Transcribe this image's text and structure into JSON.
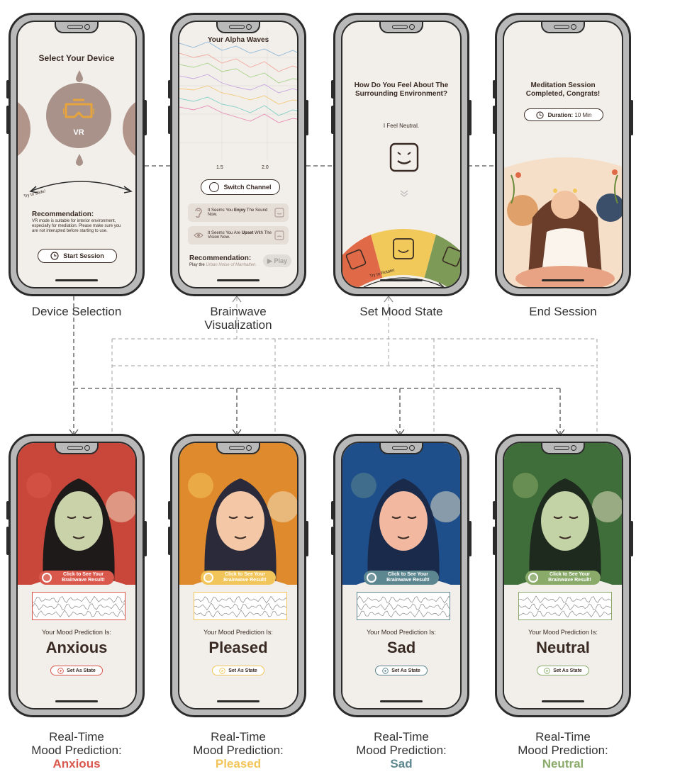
{
  "screens": {
    "device": {
      "title": "Select Your Device",
      "device_label": "VR",
      "slide_hint": "Try to Slide!",
      "rec_title": "Recommendation:",
      "rec_text": "VR mode is suitable for interior environment, especially for mediation. Please make sure you are not interupted before starting to use.",
      "start_button": "Start Session"
    },
    "brainwave": {
      "title": "Your Alpha Waves",
      "ticks": [
        "1.5",
        "2.0"
      ],
      "switch_button": "Switch Channel",
      "card1_pre": "It Seems You ",
      "card1_bold": "Enjoy",
      "card1_post": " The Sound Now.",
      "card2_pre": "It Seems You Are ",
      "card2_bold": "Upset",
      "card2_post": " With The Vision Now.",
      "rec_title": "Recommendation:",
      "rec_pre": "Play the ",
      "rec_italic": "Urban Noise of Manhatten.",
      "play_button": "▶ Play"
    },
    "mood": {
      "title": "How Do You Feel About The Surrounding Environment?",
      "feeling": "I Feel Neutral.",
      "rotate_hint": "Try to Rotate!"
    },
    "end": {
      "title": "Meditation Session Completed, Congrats!",
      "duration_label": "Duration:",
      "duration_value": "10 Min"
    }
  },
  "captions": {
    "device": "Device Selection",
    "brainwave": "Brainwave Visualization",
    "mood": "Set Mood State",
    "end": "End Session",
    "rt_prefix_1": "Real-Time",
    "rt_prefix_2": "Mood Prediction:"
  },
  "predictions": [
    {
      "mood": "Anxious",
      "color": "#d9574b",
      "bg": "#c9463b"
    },
    {
      "mood": "Pleased",
      "color": "#f2c55a",
      "bg": "#e08a2e"
    },
    {
      "mood": "Sad",
      "color": "#5d8790",
      "bg": "#1f4f8a"
    },
    {
      "mood": "Neutral",
      "color": "#8aaa6a",
      "bg": "#3f6e3a"
    }
  ],
  "prediction_screen": {
    "click_text": "Click to See Your Brainwave Result!",
    "prediction_label": "Your Mood Prediction Is:",
    "set_button": "Set As State"
  },
  "colors": {
    "brown": "#a8928a",
    "accent_orange": "#e8a43c",
    "mood_red": "#e06a48",
    "mood_yellow": "#f1c95a",
    "mood_green": "#7d9a56"
  },
  "icons": [
    "vr-headset-icon",
    "clock-icon",
    "ear-icon",
    "eye-icon",
    "smile-face-icon",
    "chevron-down-icon",
    "angry-face-icon",
    "play-icon"
  ]
}
